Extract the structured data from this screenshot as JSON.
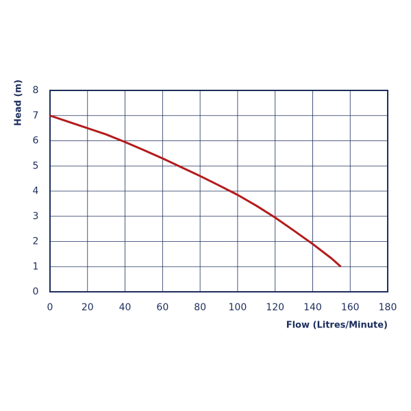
{
  "chart_data": {
    "type": "line",
    "x_label": "Flow (Litres/Minute)",
    "y_label": "Head (m)",
    "x": [
      0,
      10,
      20,
      30,
      40,
      50,
      60,
      70,
      80,
      90,
      100,
      110,
      120,
      130,
      140,
      150,
      155
    ],
    "series": [
      {
        "color": "#b31b1b",
        "values": [
          7.0,
          6.75,
          6.5,
          6.25,
          5.95,
          5.63,
          5.3,
          4.95,
          4.6,
          4.23,
          3.85,
          3.42,
          2.95,
          2.43,
          1.9,
          1.33,
          1.0
        ]
      }
    ],
    "xlim": [
      0,
      180
    ],
    "ylim": [
      0,
      8
    ],
    "xticks": [
      0,
      20,
      40,
      60,
      80,
      100,
      120,
      140,
      160,
      180
    ],
    "yticks": [
      0,
      1,
      2,
      3,
      4,
      5,
      6,
      7,
      8
    ],
    "grid": true
  }
}
